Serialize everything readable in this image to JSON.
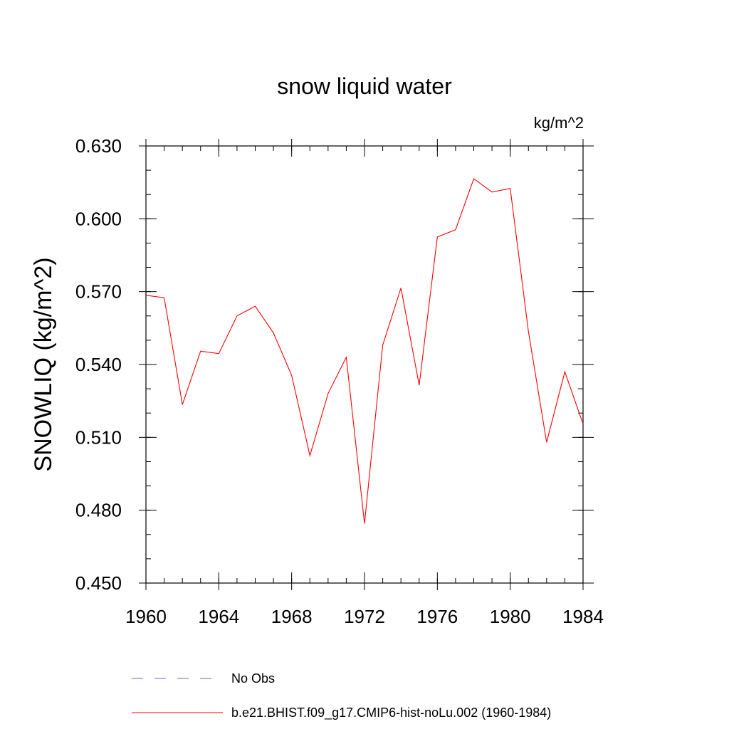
{
  "chart_data": {
    "type": "line",
    "title": "snow liquid water",
    "units_label": "kg/m^2",
    "xlabel": "",
    "ylabel": "SNOWLIQ  (kg/m^2)",
    "xlim": [
      1960,
      1984
    ],
    "ylim": [
      0.45,
      0.63
    ],
    "x_ticks": [
      "1960",
      "1964",
      "1968",
      "1972",
      "1976",
      "1980",
      "1984"
    ],
    "y_ticks": [
      "0.450",
      "0.480",
      "0.510",
      "0.540",
      "0.570",
      "0.600",
      "0.630"
    ],
    "grid": false,
    "legend_position": "bottom",
    "series": [
      {
        "name": "No Obs",
        "color": "#6a6acd",
        "dash": "dashed",
        "x": [],
        "values": []
      },
      {
        "name": "b.e21.BHIST.f09_g17.CMIP6-hist-noLu.002 (1960-1984)",
        "color": "#ff0000",
        "dash": "solid",
        "x": [
          1960,
          1961,
          1962,
          1963,
          1964,
          1965,
          1966,
          1967,
          1968,
          1969,
          1970,
          1971,
          1972,
          1973,
          1974,
          1975,
          1976,
          1977,
          1978,
          1979,
          1980,
          1981,
          1982,
          1983,
          1984
        ],
        "values": [
          0.5685,
          0.5675,
          0.5235,
          0.5455,
          0.5445,
          0.56,
          0.564,
          0.553,
          0.5355,
          0.5025,
          0.528,
          0.543,
          0.4745,
          0.548,
          0.5715,
          0.5315,
          0.5925,
          0.5955,
          0.6165,
          0.611,
          0.6125,
          0.5535,
          0.508,
          0.537,
          0.5155
        ]
      }
    ]
  }
}
